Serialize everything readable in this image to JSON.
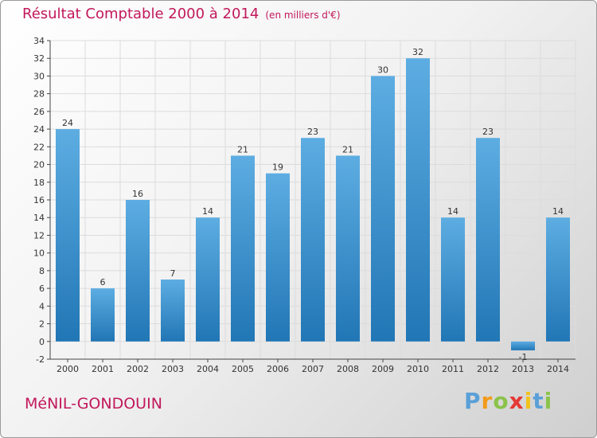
{
  "header": {
    "title": "Résultat Comptable 2000 à 2014",
    "unit": "(en milliers d'€)"
  },
  "location": "MéNIL-GONDOUIN",
  "logo": {
    "text": "Proxiti",
    "letters": [
      "P",
      "r",
      "o",
      "x",
      "i",
      "t",
      "i"
    ]
  },
  "colors": {
    "bar_light": "#5dade2",
    "bar_dark": "#2176b5",
    "accent": "#c2185b",
    "grid": "#dcdcdc",
    "axis": "#444444"
  },
  "chart_data": {
    "type": "bar",
    "title": "Résultat Comptable 2000 à 2014",
    "subtitle": "(en milliers d'€)",
    "xlabel": "",
    "ylabel": "",
    "categories": [
      "2000",
      "2001",
      "2002",
      "2003",
      "2004",
      "2005",
      "2006",
      "2007",
      "2008",
      "2009",
      "2010",
      "2011",
      "2012",
      "2013",
      "2014"
    ],
    "values": [
      24,
      6,
      16,
      7,
      14,
      21,
      19,
      23,
      21,
      30,
      32,
      14,
      23,
      -1,
      14
    ],
    "ylim": [
      -2,
      34
    ],
    "yticks": [
      -2,
      0,
      2,
      4,
      6,
      8,
      10,
      12,
      14,
      16,
      18,
      20,
      22,
      24,
      26,
      28,
      30,
      32,
      34
    ],
    "grid": true,
    "legend": "none"
  }
}
